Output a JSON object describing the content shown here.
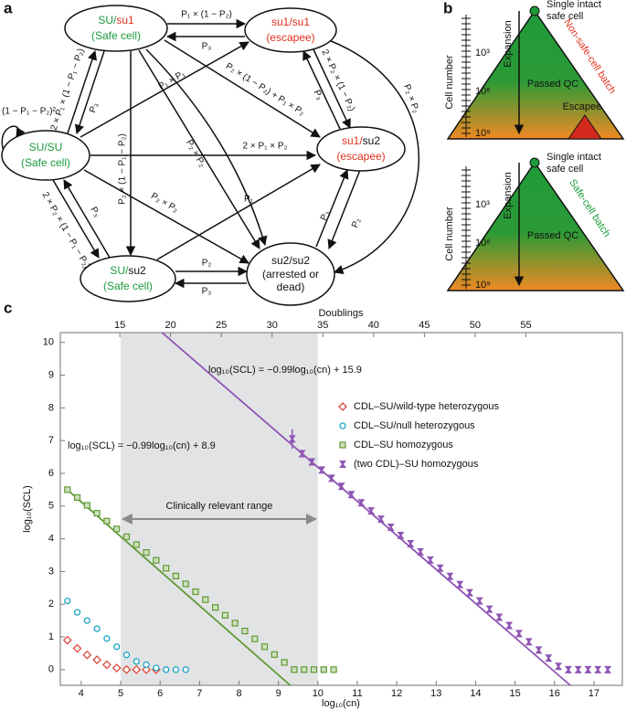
{
  "panels": [
    "a",
    "b",
    "c"
  ],
  "diagram": {
    "nodes": [
      {
        "label": [
          "SU/",
          "su1"
        ],
        "note": [
          "(Safe cell)"
        ]
      },
      {
        "label": [
          "su1/su1"
        ],
        "note": [
          "(escapee)"
        ]
      },
      {
        "label": [
          "SU/SU"
        ],
        "note": [
          "(Safe cell)"
        ]
      },
      {
        "label": [
          "su1/",
          "su2"
        ],
        "note": [
          "(escapee)"
        ]
      },
      {
        "label": [
          "SU/",
          "su2"
        ],
        "note": [
          "(Safe cell)"
        ]
      },
      {
        "label": [
          "su2/su2"
        ],
        "note": [
          "(arrested or",
          "dead)"
        ]
      }
    ],
    "edge_labels": [
      "P₁ × (1 − P₂)",
      "P₃",
      "(1 − P₁ − P₂)²",
      "2 × P₁ × (1 − P₁ − P₂)",
      "P₃",
      "P₁ × P₁",
      "P₂ × (1 − P₂) + P₁ × P₂",
      "2 × P₂ × (1 − P₂)",
      "P₃",
      "P₂ × P₂",
      "2 × P₁ × P₂",
      "P₂ × (1 − P₁ − P₂)",
      "P₂ × P₂",
      "P₂ × P₂",
      "2 × P₂ × (1 − P₁ − P₂)",
      "P₃",
      "P₁",
      "P₃",
      "P₂",
      "P₂",
      "P₃"
    ]
  },
  "panel_b": [
    {
      "axis_label": "Cell number",
      "scale": [
        "10³",
        "10⁶",
        "10⁹"
      ],
      "arrow": "Expansion",
      "top": [
        "Single intact",
        "safe cell"
      ],
      "batch": "Non-safe-cell batch",
      "qc": "Passed QC",
      "escapee": "Escapee"
    },
    {
      "axis_label": "Cell number",
      "scale": [
        "10³",
        "10⁶",
        "10⁹"
      ],
      "arrow": "Expansion",
      "top": [
        "Single intact",
        "safe cell"
      ],
      "batch": "Safe-cell batch",
      "qc": "Passed QC"
    }
  ],
  "chart_data": {
    "type": "scatter",
    "xlabel": "log₁₀(cn)",
    "ylabel": "log₁₀(SCL)",
    "x2label": "Doublings",
    "xlim": [
      3.47,
      17.72
    ],
    "xticks": [
      4,
      5,
      6,
      7,
      8,
      9,
      10,
      11,
      12,
      13,
      14,
      15,
      16,
      17
    ],
    "x2lim": [
      9.14,
      64.5
    ],
    "x2ticks": [
      15,
      20,
      25,
      30,
      35,
      40,
      45,
      50,
      55
    ],
    "ylim": [
      -0.48,
      10.3
    ],
    "yticks": [
      0,
      1,
      2,
      3,
      4,
      5,
      6,
      7,
      8,
      9,
      10
    ],
    "shaded_range": [
      5,
      10
    ],
    "shaded_label": "Clinically relevant range",
    "legend": "upper right",
    "series": [
      {
        "name": "CDL–SU/wild-type heterozygous",
        "color": "#dc4a3c",
        "marker": "diamond",
        "x": [
          3.65,
          3.9,
          4.15,
          4.4,
          4.65,
          4.9,
          5.15,
          5.4,
          5.65,
          5.9
        ],
        "values": [
          0.9,
          0.65,
          0.45,
          0.3,
          0.15,
          0.05,
          0,
          0,
          0,
          0
        ]
      },
      {
        "name": "CDL–SU/null heterozygous",
        "color": "#1aa3c4",
        "marker": "circle",
        "x": [
          3.65,
          3.9,
          4.15,
          4.4,
          4.65,
          4.9,
          5.15,
          5.4,
          5.65,
          5.9,
          6.15,
          6.4,
          6.65
        ],
        "values": [
          2.1,
          1.75,
          1.5,
          1.25,
          0.95,
          0.7,
          0.45,
          0.25,
          0.15,
          0.05,
          0,
          0,
          0
        ]
      },
      {
        "name": "CDL–SU homozygous",
        "color": "#5f9a34",
        "marker": "square",
        "x": [
          3.65,
          3.9,
          4.15,
          4.4,
          4.65,
          4.9,
          5.15,
          5.4,
          5.65,
          5.9,
          6.15,
          6.4,
          6.65,
          6.9,
          7.15,
          7.4,
          7.65,
          7.9,
          8.15,
          8.4,
          8.65,
          8.9,
          9.15,
          9.4,
          9.65,
          9.9,
          10.15,
          10.4
        ],
        "values": [
          5.5,
          5.26,
          5.02,
          4.78,
          4.54,
          4.3,
          4.06,
          3.82,
          3.58,
          3.34,
          3.1,
          2.86,
          2.62,
          2.38,
          2.14,
          1.9,
          1.66,
          1.42,
          1.18,
          0.94,
          0.7,
          0.46,
          0.22,
          0,
          0,
          0,
          0,
          0
        ]
      },
      {
        "name": "(two CDL)–SU homozygous",
        "color": "#8e55b4",
        "marker": "star",
        "x": [
          9.35,
          9.6,
          9.85,
          10.1,
          10.35,
          10.6,
          10.85,
          11.1,
          11.35,
          11.6,
          11.85,
          12.1,
          12.35,
          12.6,
          12.85,
          13.1,
          13.35,
          13.6,
          13.85,
          14.1,
          14.35,
          14.6,
          14.85,
          15.1,
          15.35,
          15.6,
          15.85,
          16.1,
          16.35,
          16.6,
          16.85,
          17.1,
          17.35
        ],
        "values": [
          7.05,
          6.6,
          6.35,
          6.1,
          5.85,
          5.6,
          5.35,
          5.1,
          4.85,
          4.6,
          4.35,
          4.1,
          3.85,
          3.6,
          3.35,
          3.1,
          2.85,
          2.6,
          2.35,
          2.1,
          1.85,
          1.6,
          1.35,
          1.1,
          0.85,
          0.6,
          0.35,
          0.1,
          0,
          0,
          0,
          0,
          0
        ],
        "errors": [
          0.3,
          0.1,
          0.08,
          0.08,
          0.08,
          0.08,
          0.08,
          0.08,
          0.08,
          0.08,
          0.08,
          0.08,
          0.08,
          0.08,
          0.08,
          0.08,
          0.08,
          0.08,
          0.08,
          0.08,
          0.08,
          0.08,
          0.08,
          0.08,
          0.08,
          0.08,
          0.08,
          0.08,
          0.06,
          0.06,
          0.06,
          0.06,
          0.06
        ]
      }
    ],
    "fit_lines": [
      {
        "label": "log₁₀(SCL) = −0.99log₁₀(cn) + 8.9",
        "color": "#5f9a34",
        "x": [
          3.6,
          9.3
        ],
        "values": [
          5.55,
          -0.48
        ]
      },
      {
        "label": "log₁₀(SCL) = −0.99log₁₀(cn) + 15.9",
        "color": "#8e55b4",
        "x": [
          6.05,
          16.4
        ],
        "values": [
          10.3,
          -0.48
        ]
      }
    ]
  }
}
